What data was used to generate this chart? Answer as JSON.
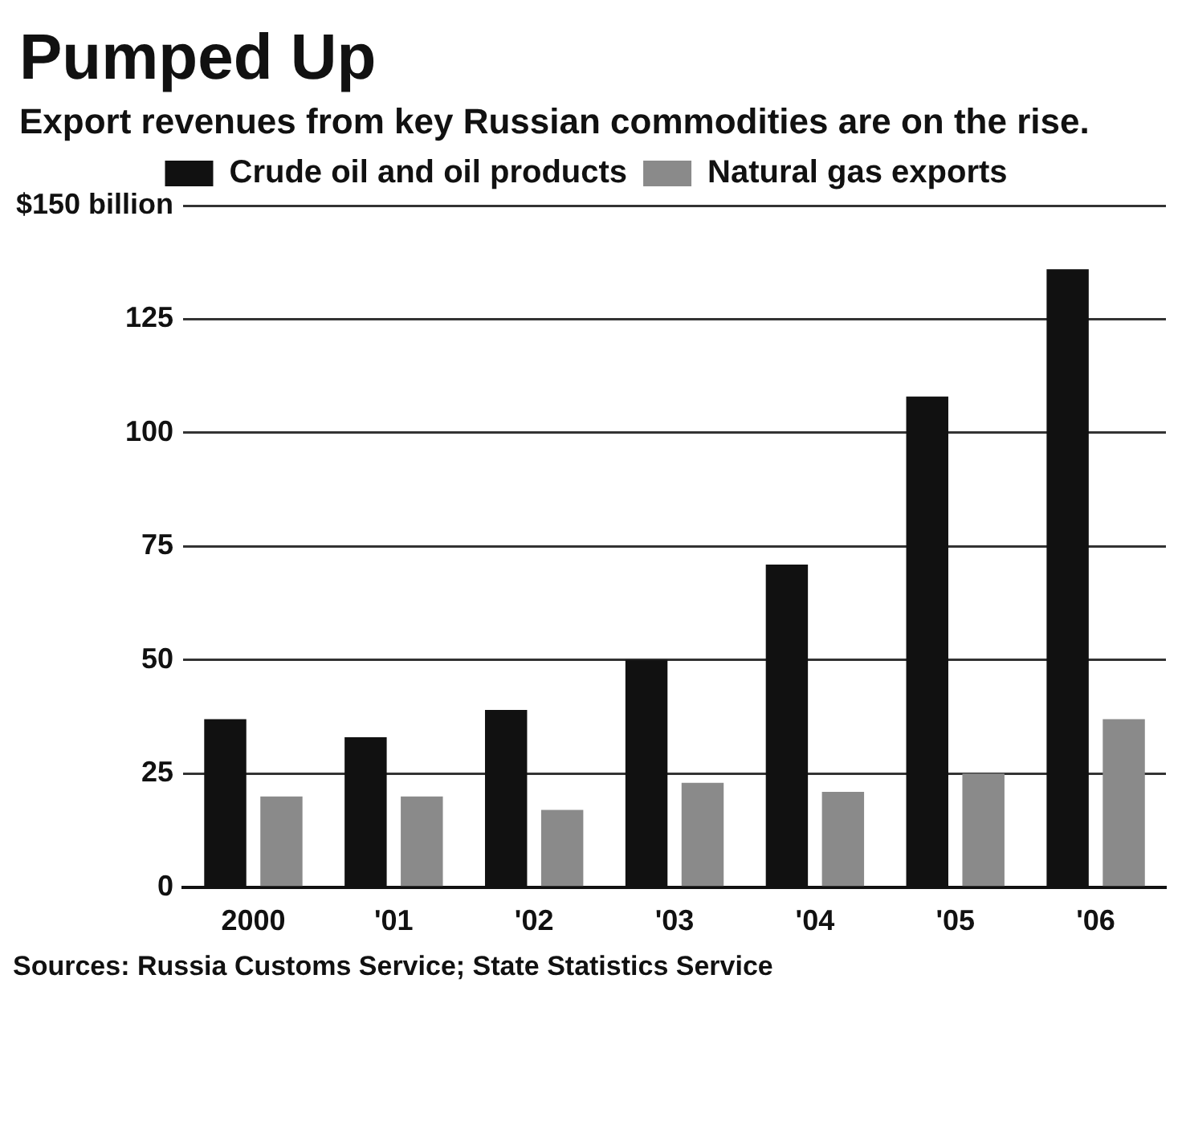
{
  "chart_data": {
    "type": "bar",
    "title": "Pumped Up",
    "subtitle": "Export revenues from key Russian commodities are on the rise.",
    "categories": [
      "2000",
      "'01",
      "'02",
      "'03",
      "'04",
      "'05",
      "'06"
    ],
    "series": [
      {
        "name": "Crude oil and oil products",
        "color": "#111111",
        "values": [
          37,
          33,
          39,
          50,
          71,
          108,
          136
        ]
      },
      {
        "name": "Natural gas exports",
        "color": "#8a8a8a",
        "values": [
          20,
          20,
          17,
          23,
          21,
          25,
          37
        ]
      }
    ],
    "ylim": [
      0,
      150
    ],
    "yticks": [
      0,
      25,
      50,
      75,
      100,
      125,
      {
        "value": 150,
        "label": "$150 billion"
      }
    ],
    "grid": "y",
    "legend": "top",
    "annotations": [
      "Sources: Russia Customs Service; State Statistics Service"
    ]
  }
}
